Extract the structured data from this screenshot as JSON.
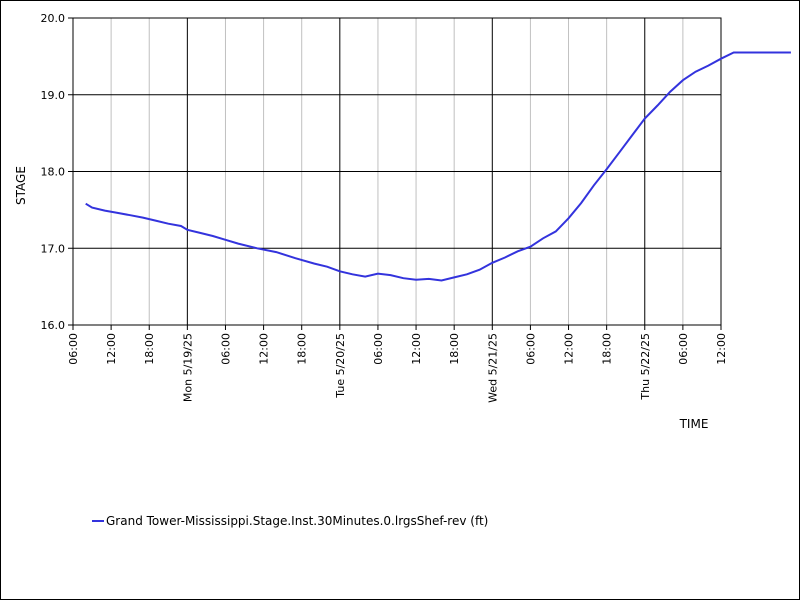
{
  "chart_data": {
    "type": "line",
    "xlabel": "TIME",
    "ylabel": "STAGE",
    "ylim": [
      16.0,
      20.0
    ],
    "y_ticks": [
      "16.0",
      "17.0",
      "18.0",
      "19.0",
      "20.0"
    ],
    "x_ticks": [
      "06:00",
      "12:00",
      "18:00",
      "Mon 5/19/25",
      "06:00",
      "12:00",
      "18:00",
      "Tue 5/20/25",
      "06:00",
      "12:00",
      "18:00",
      "Wed 5/21/25",
      "06:00",
      "12:00",
      "18:00",
      "Thu 5/22/25",
      "06:00",
      "12:00"
    ],
    "grid": true,
    "legend": "bottom-left",
    "series": [
      {
        "name": "Grand Tower-Mississippi.Stage.Inst.30Minutes.0.lrgsShef-rev (ft)",
        "color": "#3333dd",
        "x_hours": [
          8,
          9,
          11,
          13,
          15,
          17,
          19,
          21,
          23,
          24,
          26,
          28,
          30,
          32,
          35,
          38,
          41,
          44,
          46,
          48,
          50,
          52,
          54,
          56,
          58,
          60,
          62,
          64,
          66,
          68,
          70,
          72,
          74,
          76,
          78,
          80,
          82,
          84,
          86,
          88,
          90,
          92,
          94,
          96,
          98,
          100,
          102,
          104,
          106,
          108,
          110,
          112,
          114,
          116,
          118,
          119
        ],
        "values": [
          17.58,
          17.53,
          17.49,
          17.46,
          17.43,
          17.4,
          17.36,
          17.32,
          17.29,
          17.24,
          17.2,
          17.16,
          17.11,
          17.06,
          17.0,
          16.95,
          16.87,
          16.8,
          16.76,
          16.7,
          16.66,
          16.63,
          16.67,
          16.65,
          16.61,
          16.59,
          16.6,
          16.58,
          16.62,
          16.66,
          16.72,
          16.81,
          16.88,
          16.96,
          17.02,
          17.13,
          17.22,
          17.39,
          17.59,
          17.82,
          18.03,
          18.25,
          18.47,
          18.69,
          18.86,
          19.04,
          19.19,
          19.3,
          19.38,
          19.47,
          19.55,
          19.55,
          19.55,
          19.55,
          19.55,
          19.55
        ]
      }
    ]
  }
}
